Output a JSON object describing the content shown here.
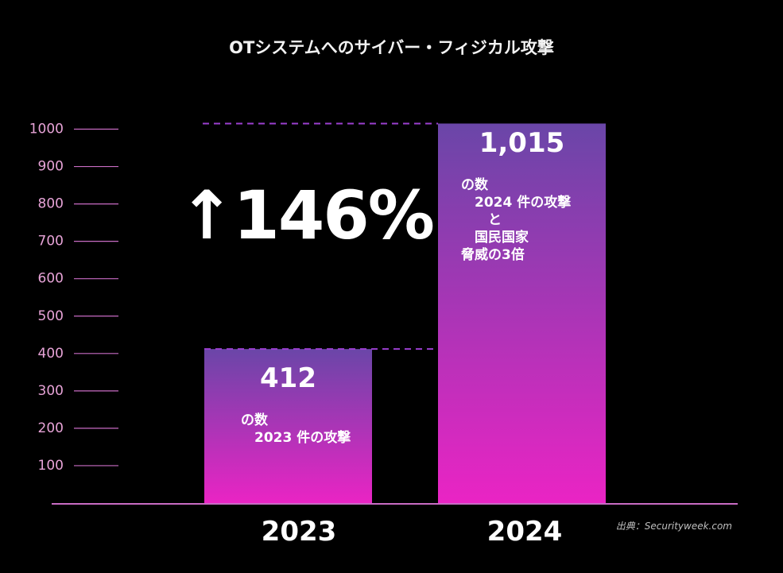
{
  "title": "OTシステムへのサイバー・フィジカル攻撃",
  "change_label": "↑146%",
  "source": "出典：Securityweek.com",
  "colors": {
    "bar_top": "#6a46a8",
    "bar_bottom": "#ea24c4",
    "axis": "#c86cc4",
    "tick_label": "#e7a3d7",
    "dash": "#9b3fd0"
  },
  "chart_data": {
    "type": "bar",
    "title": "OTシステムへのサイバー・フィジカル攻撃",
    "categories": [
      "2023",
      "2024"
    ],
    "values": [
      412,
      1015
    ],
    "value_labels": [
      "412",
      "1,015"
    ],
    "descriptions": [
      "の数\n　2023 件の攻撃",
      "の数\n　2024 件の攻撃\n　　と\n　国民国家\n脅威の3倍"
    ],
    "yticks": [
      100,
      200,
      300,
      400,
      500,
      600,
      700,
      800,
      900,
      1000
    ],
    "ylim": [
      0,
      1100
    ],
    "grid": false,
    "xlabel": "",
    "ylabel": ""
  }
}
